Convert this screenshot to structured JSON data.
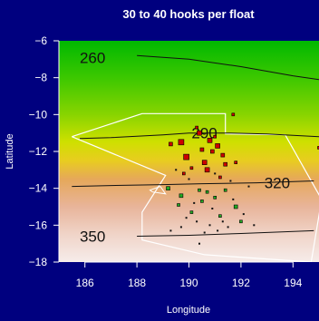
{
  "chart_data": {
    "type": "scatter",
    "title": "30 to 40 hooks per float",
    "xlabel": "Longitude",
    "ylabel": "Latitude",
    "xlim": [
      185,
      195
    ],
    "ylim": [
      -18,
      -6
    ],
    "xticks": [
      186,
      188,
      190,
      192,
      194
    ],
    "yticks": [
      -6,
      -8,
      -10,
      -12,
      -14,
      -16,
      -18
    ],
    "background_gradient": [
      {
        "lat": -6,
        "color": "#00b800"
      },
      {
        "lat": -8,
        "color": "#3cc800"
      },
      {
        "lat": -10,
        "color": "#88d400"
      },
      {
        "lat": -11.5,
        "color": "#cfe000"
      },
      {
        "lat": -12.5,
        "color": "#e8cc20"
      },
      {
        "lat": -13.5,
        "color": "#e6a85a"
      },
      {
        "lat": -15,
        "color": "#e8b49a"
      },
      {
        "lat": -16.5,
        "color": "#f0d4c8"
      },
      {
        "lat": -18,
        "color": "#f6ecea"
      }
    ],
    "contours": [
      {
        "label": "260",
        "label_lon": 185.8,
        "label_lat": -6.9,
        "points": [
          [
            188.0,
            -6.8
          ],
          [
            190,
            -7.0
          ],
          [
            192,
            -7.4
          ],
          [
            194,
            -7.9
          ],
          [
            195,
            -8.1
          ]
        ]
      },
      {
        "label": "290",
        "label_lon": 190.1,
        "label_lat": -11.0,
        "points": [
          [
            185.8,
            -11.3
          ],
          [
            187,
            -11.25
          ],
          [
            189,
            -11.1
          ],
          [
            190.0,
            -11.0
          ],
          [
            191.5,
            -11.0
          ],
          [
            193,
            -11.05
          ],
          [
            195,
            -11.2
          ]
        ]
      },
      {
        "label": "320",
        "label_lon": 192.9,
        "label_lat": -13.7,
        "points": [
          [
            185.5,
            -13.9
          ],
          [
            187,
            -13.85
          ],
          [
            189,
            -13.8
          ],
          [
            190.5,
            -13.75
          ],
          [
            192.6,
            -13.7
          ],
          [
            194.8,
            -13.6
          ]
        ]
      },
      {
        "label": "350",
        "label_lon": 185.8,
        "label_lat": -16.6,
        "points": [
          [
            188.0,
            -16.6
          ],
          [
            190,
            -16.55
          ],
          [
            192,
            -16.45
          ],
          [
            194.8,
            -16.3
          ]
        ]
      }
    ],
    "boundary": [
      [
        185.5,
        -11.2
      ],
      [
        188.2,
        -9.95
      ],
      [
        191.4,
        -9.95
      ],
      [
        191.4,
        -11.05
      ],
      [
        193.7,
        -11.1
      ],
      [
        195.1,
        -14.6
      ],
      [
        194.7,
        -18.0
      ],
      [
        190.6,
        -17.6
      ],
      [
        188.2,
        -16.8
      ],
      [
        188.2,
        -15.3
      ],
      [
        189.1,
        -13.3
      ],
      [
        185.5,
        -11.2
      ]
    ],
    "small_loop": [
      [
        188.5,
        -14.1
      ],
      [
        188.9,
        -13.9
      ],
      [
        189.1,
        -14.3
      ],
      [
        188.6,
        -14.2
      ]
    ],
    "series": [
      {
        "name": "red",
        "color": "#cc0000",
        "points": [
          [
            189.7,
            -11.5,
            6
          ],
          [
            190.4,
            -11.0,
            5
          ],
          [
            190.8,
            -11.4,
            5
          ],
          [
            191.1,
            -11.7,
            5
          ],
          [
            189.9,
            -12.3,
            6
          ],
          [
            190.6,
            -12.6,
            5
          ],
          [
            190.9,
            -12.0,
            4
          ],
          [
            190.7,
            -13.0,
            5
          ],
          [
            191.3,
            -12.2,
            4
          ],
          [
            190.5,
            -11.9,
            4
          ],
          [
            189.3,
            -11.6,
            4
          ],
          [
            191.4,
            -12.7,
            4
          ],
          [
            190.1,
            -12.9,
            3
          ],
          [
            191.7,
            -10.0,
            3
          ],
          [
            190.3,
            -10.7,
            3
          ],
          [
            191.0,
            -11.2,
            3
          ],
          [
            191.8,
            -12.6,
            3
          ],
          [
            189.8,
            -13.2,
            3
          ],
          [
            195.0,
            -11.8,
            3
          ],
          [
            191.2,
            -13.4,
            3
          ]
        ]
      },
      {
        "name": "green",
        "color": "#22aa22",
        "points": [
          [
            189.2,
            -14.0,
            4
          ],
          [
            189.7,
            -14.4,
            4
          ],
          [
            190.4,
            -14.1,
            3
          ],
          [
            191.0,
            -14.5,
            3
          ],
          [
            190.1,
            -15.3,
            3
          ],
          [
            191.8,
            -15.0,
            4
          ],
          [
            192.0,
            -15.8,
            3
          ],
          [
            189.6,
            -14.9,
            3
          ],
          [
            191.4,
            -14.1,
            3
          ],
          [
            190.7,
            -14.2,
            3
          ],
          [
            191.2,
            -15.5,
            3
          ],
          [
            190.5,
            -14.7,
            3
          ]
        ]
      },
      {
        "name": "black",
        "color": "#111111",
        "points": [
          [
            189.5,
            -13.0,
            2
          ],
          [
            190.0,
            -13.5,
            2
          ],
          [
            190.3,
            -15.8,
            2
          ],
          [
            190.8,
            -16.0,
            2
          ],
          [
            191.1,
            -16.3,
            2
          ],
          [
            191.5,
            -16.1,
            2
          ],
          [
            190.9,
            -15.1,
            2
          ],
          [
            191.7,
            -14.6,
            2
          ],
          [
            189.9,
            -15.6,
            2
          ],
          [
            192.1,
            -15.4,
            2
          ],
          [
            190.6,
            -16.4,
            2
          ],
          [
            191.3,
            -15.8,
            2
          ],
          [
            189.7,
            -16.1,
            2
          ],
          [
            190.2,
            -14.8,
            2
          ],
          [
            192.3,
            -13.9,
            2
          ],
          [
            191.0,
            -13.2,
            2
          ],
          [
            192.5,
            -16.0,
            2
          ],
          [
            190.4,
            -17.0,
            2
          ],
          [
            189.3,
            -16.3,
            2
          ],
          [
            191.6,
            -13.6,
            2
          ]
        ]
      }
    ]
  }
}
